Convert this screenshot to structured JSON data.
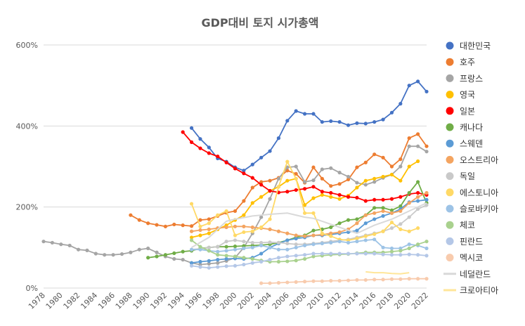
{
  "chart_data": {
    "type": "line",
    "title": "GDP대비 토지 시가총액",
    "xlabel": "",
    "ylabel": "",
    "x_range": [
      1978,
      2022
    ],
    "ylim": [
      0,
      600
    ],
    "y_ticks": [
      0,
      200,
      400,
      600
    ],
    "y_tick_labels": [
      "0%",
      "200%",
      "400%",
      "600%"
    ],
    "x_ticks": [
      1978,
      1980,
      1982,
      1984,
      1986,
      1988,
      1990,
      1992,
      1994,
      1996,
      1998,
      2000,
      2002,
      2004,
      2006,
      2008,
      2010,
      2012,
      2014,
      2016,
      2018,
      2020,
      2022
    ],
    "grid": "horizontal",
    "legend_position": "right",
    "series": [
      {
        "name": "대한민국",
        "color": "#4472C4",
        "markers": true,
        "x": [
          1995,
          1996,
          1997,
          1998,
          1999,
          2000,
          2001,
          2002,
          2003,
          2004,
          2005,
          2006,
          2007,
          2008,
          2009,
          2010,
          2011,
          2012,
          2013,
          2014,
          2015,
          2016,
          2017,
          2018,
          2019,
          2020,
          2021,
          2022
        ],
        "values": [
          395,
          368,
          347,
          320,
          312,
          298,
          290,
          305,
          322,
          338,
          370,
          413,
          437,
          430,
          430,
          410,
          412,
          410,
          402,
          407,
          406,
          410,
          416,
          433,
          455,
          500,
          510,
          485
        ]
      },
      {
        "name": "호주",
        "color": "#ED7D31",
        "markers": true,
        "x": [
          1988,
          1989,
          1990,
          1991,
          1992,
          1993,
          1994,
          1995,
          1996,
          1997,
          1998,
          1999,
          2000,
          2001,
          2002,
          2003,
          2004,
          2005,
          2006,
          2007,
          2008,
          2009,
          2010,
          2011,
          2012,
          2013,
          2014,
          2015,
          2016,
          2017,
          2018,
          2019,
          2020,
          2021,
          2022
        ],
        "values": [
          180,
          168,
          160,
          156,
          152,
          157,
          155,
          153,
          168,
          170,
          178,
          186,
          190,
          215,
          248,
          262,
          265,
          272,
          290,
          282,
          260,
          298,
          270,
          252,
          257,
          268,
          298,
          310,
          330,
          322,
          300,
          318,
          370,
          380,
          350
        ]
      },
      {
        "name": "프랑스",
        "color": "#A5A5A5",
        "markers": true,
        "x": [
          1978,
          1979,
          1980,
          1981,
          1982,
          1983,
          1984,
          1985,
          1986,
          1987,
          1988,
          1989,
          1990,
          1991,
          1992,
          1993,
          1994,
          1995,
          1996,
          1997,
          1998,
          1999,
          2000,
          2001,
          2002,
          2003,
          2004,
          2005,
          2006,
          2007,
          2008,
          2009,
          2010,
          2011,
          2012,
          2013,
          2014,
          2015,
          2016,
          2017,
          2018,
          2019,
          2020,
          2021,
          2022
        ],
        "values": [
          115,
          112,
          108,
          105,
          95,
          93,
          85,
          82,
          82,
          84,
          88,
          95,
          98,
          88,
          78,
          72,
          70,
          62,
          58,
          60,
          62,
          67,
          75,
          100,
          135,
          175,
          220,
          270,
          298,
          300,
          262,
          266,
          293,
          296,
          285,
          275,
          260,
          255,
          262,
          272,
          280,
          300,
          350,
          350,
          337
        ]
      },
      {
        "name": "영국",
        "color": "#FFC000",
        "markers": true,
        "x": [
          1995,
          1996,
          1997,
          1998,
          1999,
          2000,
          2001,
          2002,
          2003,
          2004,
          2005,
          2006,
          2007,
          2008,
          2009,
          2010,
          2011,
          2012,
          2013,
          2014,
          2015,
          2016,
          2017,
          2018,
          2019,
          2020,
          2021
        ],
        "values": [
          125,
          130,
          135,
          145,
          155,
          168,
          180,
          210,
          225,
          240,
          250,
          265,
          270,
          205,
          222,
          230,
          225,
          220,
          228,
          248,
          265,
          270,
          275,
          280,
          265,
          300,
          313
        ]
      },
      {
        "name": "일본",
        "color": "#FF0000",
        "markers": true,
        "x": [
          1994,
          1995,
          1996,
          1997,
          1998,
          1999,
          2000,
          2001,
          2002,
          2003,
          2004,
          2005,
          2006,
          2007,
          2008,
          2009,
          2010,
          2011,
          2012,
          2013,
          2014,
          2015,
          2016,
          2017,
          2018,
          2019,
          2020,
          2021,
          2022
        ],
        "values": [
          385,
          360,
          345,
          333,
          325,
          310,
          295,
          283,
          272,
          255,
          240,
          236,
          238,
          242,
          245,
          250,
          238,
          235,
          230,
          225,
          223,
          215,
          218,
          218,
          220,
          225,
          232,
          235,
          230
        ]
      },
      {
        "name": "캐나다",
        "color": "#70AD47",
        "markers": true,
        "x": [
          1990,
          1991,
          1992,
          1993,
          1994,
          1995,
          1996,
          1997,
          1998,
          1999,
          2000,
          2001,
          2002,
          2003,
          2004,
          2005,
          2006,
          2007,
          2008,
          2009,
          2010,
          2011,
          2012,
          2013,
          2014,
          2015,
          2016,
          2017,
          2018,
          2019,
          2020,
          2021,
          2022
        ],
        "values": [
          75,
          78,
          82,
          86,
          90,
          92,
          98,
          100,
          102,
          102,
          103,
          104,
          105,
          106,
          108,
          112,
          118,
          125,
          130,
          142,
          145,
          150,
          160,
          168,
          170,
          180,
          198,
          198,
          192,
          202,
          235,
          262,
          210
        ]
      },
      {
        "name": "스웨덴",
        "color": "#5B9BD5",
        "markers": true,
        "x": [
          1995,
          1996,
          1997,
          1998,
          1999,
          2000,
          2001,
          2002,
          2003,
          2004,
          2005,
          2006,
          2007,
          2008,
          2009,
          2010,
          2011,
          2012,
          2013,
          2014,
          2015,
          2016,
          2017,
          2018,
          2019,
          2020,
          2021,
          2022
        ],
        "values": [
          62,
          65,
          67,
          70,
          72,
          73,
          72,
          75,
          85,
          100,
          110,
          118,
          122,
          125,
          130,
          130,
          132,
          135,
          138,
          142,
          160,
          170,
          178,
          185,
          195,
          212,
          215,
          218
        ]
      },
      {
        "name": "오스트리아",
        "color": "#F4A460",
        "markers": true,
        "x": [
          1995,
          1996,
          1997,
          1998,
          1999,
          2000,
          2001,
          2002,
          2003,
          2004,
          2005,
          2006,
          2007,
          2008,
          2009,
          2010,
          2011,
          2012,
          2013,
          2014,
          2015,
          2016,
          2017,
          2018,
          2019,
          2020,
          2021,
          2022
        ],
        "values": [
          140,
          143,
          145,
          148,
          150,
          152,
          152,
          150,
          148,
          145,
          140,
          135,
          130,
          128,
          130,
          132,
          135,
          138,
          145,
          160,
          180,
          185,
          190,
          185,
          190,
          210,
          225,
          235
        ]
      },
      {
        "name": "독일",
        "color": "#C9C9C9",
        "markers": true,
        "x": [
          1995,
          1996,
          1997,
          1998,
          1999,
          2000,
          2001,
          2002,
          2003,
          2004,
          2005,
          2006,
          2007,
          2008,
          2009,
          2010,
          2011,
          2012,
          2013,
          2014,
          2015,
          2016,
          2017,
          2018,
          2019,
          2020,
          2021,
          2022
        ],
        "values": [
          95,
          97,
          100,
          102,
          115,
          118,
          115,
          112,
          112,
          113,
          112,
          110,
          108,
          108,
          110,
          112,
          115,
          118,
          120,
          125,
          130,
          135,
          140,
          148,
          158,
          175,
          195,
          205
        ]
      },
      {
        "name": "에스토니아",
        "color": "#FFD966",
        "markers": true,
        "x": [
          1995,
          1996,
          1997,
          1998,
          1999,
          2000,
          2001,
          2002,
          2003,
          2004,
          2005,
          2006,
          2007,
          2008,
          2009,
          2010,
          2011,
          2012,
          2013,
          2014,
          2015,
          2016,
          2017,
          2018,
          2019,
          2020,
          2021
        ],
        "values": [
          208,
          152,
          160,
          180,
          190,
          130,
          138,
          140,
          150,
          170,
          250,
          312,
          270,
          185,
          185,
          135,
          128,
          120,
          118,
          122,
          128,
          133,
          140,
          162,
          145,
          140,
          148
        ]
      },
      {
        "name": "슬로바키아",
        "color": "#9DC3E6",
        "markers": true,
        "x": [
          1995,
          1996,
          1997,
          1998,
          1999,
          2000,
          2001,
          2002,
          2003,
          2004,
          2005,
          2006,
          2007,
          2008,
          2009,
          2010,
          2011,
          2012,
          2013,
          2014,
          2015,
          2016,
          2017,
          2018,
          2019,
          2020,
          2021,
          2022
        ],
        "values": [
          95,
          95,
          92,
          90,
          92,
          95,
          98,
          100,
          105,
          100,
          95,
          95,
          100,
          105,
          108,
          110,
          112,
          115,
          112,
          115,
          118,
          120,
          100,
          98,
          98,
          108,
          105,
          98
        ]
      },
      {
        "name": "체코",
        "color": "#A9D18E",
        "markers": true,
        "x": [
          1995,
          1996,
          1997,
          1998,
          1999,
          2000,
          2001,
          2002,
          2003,
          2004,
          2005,
          2006,
          2007,
          2008,
          2009,
          2010,
          2011,
          2012,
          2013,
          2014,
          2015,
          2016,
          2017,
          2018,
          2019,
          2020,
          2021,
          2022
        ],
        "values": [
          118,
          102,
          92,
          82,
          80,
          78,
          75,
          72,
          68,
          65,
          65,
          66,
          68,
          72,
          78,
          80,
          82,
          83,
          84,
          86,
          88,
          88,
          88,
          90,
          92,
          98,
          108,
          115
        ]
      },
      {
        "name": "핀란드",
        "color": "#B4C7E7",
        "markers": true,
        "x": [
          1995,
          1996,
          1997,
          1998,
          1999,
          2000,
          2001,
          2002,
          2003,
          2004,
          2005,
          2006,
          2007,
          2008,
          2009,
          2010,
          2011,
          2012,
          2013,
          2014,
          2015,
          2016,
          2017,
          2018,
          2019,
          2020,
          2021,
          2022
        ],
        "values": [
          55,
          52,
          50,
          52,
          54,
          55,
          58,
          62,
          65,
          70,
          75,
          78,
          80,
          82,
          85,
          85,
          85,
          85,
          85,
          85,
          85,
          85,
          83,
          82,
          82,
          83,
          82,
          80
        ]
      },
      {
        "name": "멕시코",
        "color": "#F8CBAD",
        "markers": true,
        "x": [
          2003,
          2004,
          2005,
          2006,
          2007,
          2008,
          2009,
          2010,
          2011,
          2012,
          2013,
          2014,
          2015,
          2016,
          2017,
          2018,
          2019,
          2020,
          2021,
          2022
        ],
        "values": [
          12,
          12,
          13,
          14,
          15,
          16,
          17,
          17,
          18,
          18,
          19,
          20,
          20,
          21,
          21,
          22,
          22,
          23,
          23,
          23
        ]
      },
      {
        "name": "네덜란드",
        "color": "#D9D9D9",
        "markers": false,
        "x": [
          1995,
          1997,
          1999,
          2000,
          2002,
          2004,
          2006,
          2008,
          2009,
          2010,
          2012,
          2014,
          2016,
          2018,
          2020,
          2022
        ],
        "values": [
          100,
          125,
          165,
          170,
          178,
          182,
          185,
          175,
          172,
          165,
          150,
          135,
          155,
          170,
          190,
          210
        ]
      },
      {
        "name": "크로아티아",
        "color": "#FFE699",
        "markers": false,
        "x": [
          2015,
          2016,
          2017,
          2018,
          2019,
          2020
        ],
        "values": [
          40,
          38,
          38,
          36,
          35,
          38
        ]
      }
    ]
  }
}
